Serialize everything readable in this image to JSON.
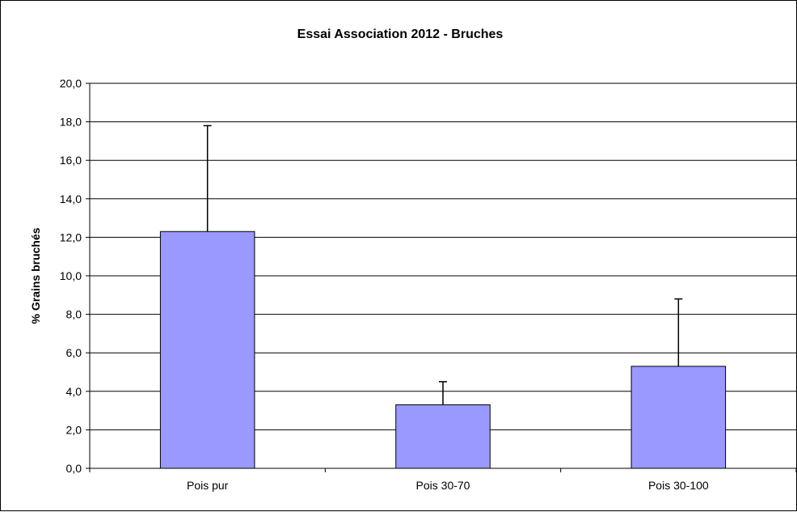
{
  "chart_data": {
    "type": "bar",
    "title": "Essai Association 2012 - Bruches",
    "xlabel": "",
    "ylabel": "% Grains bruchés",
    "categories": [
      "Pois pur",
      "Pois 30-70",
      "Pois 30-100"
    ],
    "values": [
      12.3,
      3.3,
      5.3
    ],
    "error_upper": [
      17.8,
      4.5,
      8.8
    ],
    "ylim": [
      0,
      20
    ],
    "yticks": [
      "0,0",
      "2,0",
      "4,0",
      "6,0",
      "8,0",
      "10,0",
      "12,0",
      "14,0",
      "16,0",
      "18,0",
      "20,0"
    ],
    "grid": true,
    "legend": "none",
    "colors": {
      "bar_fill": "#9999ff",
      "bar_stroke": "#000000",
      "grid": "#000000",
      "background": "#ffffff"
    }
  }
}
